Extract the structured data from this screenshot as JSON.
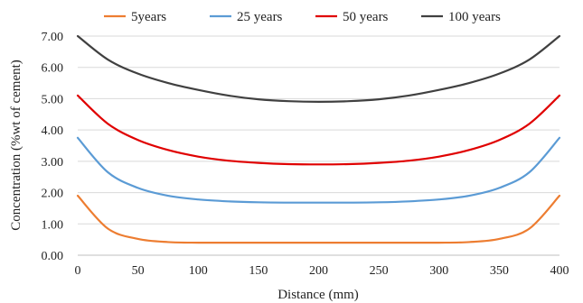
{
  "chart_data": {
    "type": "line",
    "title": "",
    "xlabel": "Distance (mm)",
    "ylabel": "Concentration (%wt of cement)",
    "xlim": [
      0,
      400
    ],
    "ylim": [
      0,
      7
    ],
    "x_ticks": [
      "0",
      "50",
      "100",
      "150",
      "200",
      "250",
      "300",
      "350",
      "400"
    ],
    "y_ticks": [
      "0.00",
      "1.00",
      "2.00",
      "3.00",
      "4.00",
      "5.00",
      "6.00",
      "7.00"
    ],
    "grid": "horizontal",
    "legend_position": "top",
    "x": [
      0,
      25,
      50,
      75,
      100,
      125,
      150,
      175,
      200,
      225,
      250,
      275,
      300,
      325,
      350,
      375,
      400
    ],
    "series": [
      {
        "name": "5years",
        "color": "#ed7d31",
        "values": [
          1.9,
          0.85,
          0.52,
          0.42,
          0.4,
          0.4,
          0.4,
          0.4,
          0.4,
          0.4,
          0.4,
          0.4,
          0.4,
          0.42,
          0.52,
          0.85,
          1.9
        ]
      },
      {
        "name": "25 years",
        "color": "#5b9bd5",
        "values": [
          3.75,
          2.65,
          2.15,
          1.9,
          1.78,
          1.72,
          1.69,
          1.68,
          1.68,
          1.68,
          1.69,
          1.72,
          1.78,
          1.9,
          2.15,
          2.65,
          3.75
        ]
      },
      {
        "name": "50 years",
        "color": "#e00000",
        "values": [
          5.1,
          4.2,
          3.68,
          3.36,
          3.15,
          3.02,
          2.95,
          2.91,
          2.9,
          2.91,
          2.95,
          3.02,
          3.15,
          3.36,
          3.68,
          4.2,
          5.1
        ]
      },
      {
        "name": "100 years",
        "color": "#404040",
        "values": [
          7.0,
          6.25,
          5.8,
          5.5,
          5.28,
          5.1,
          4.98,
          4.92,
          4.9,
          4.92,
          4.98,
          5.1,
          5.28,
          5.5,
          5.8,
          6.25,
          7.0
        ]
      }
    ]
  }
}
